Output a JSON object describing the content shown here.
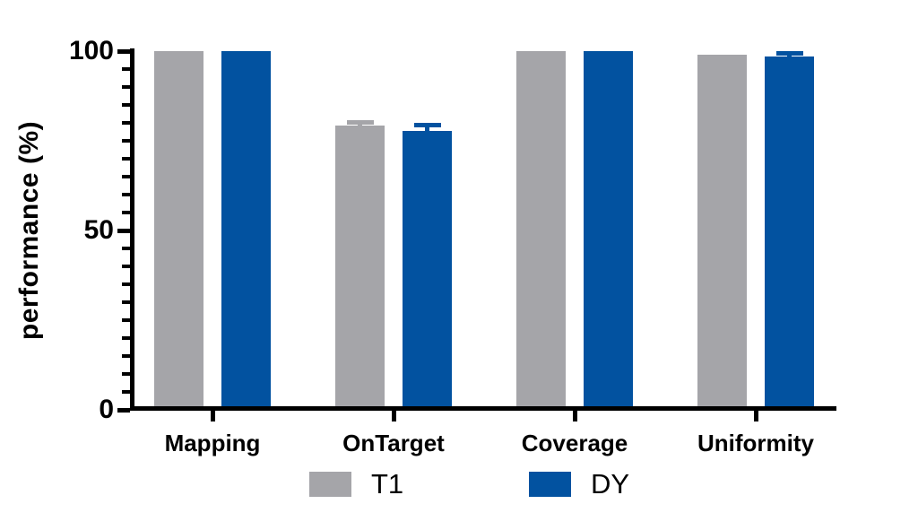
{
  "chart_data": {
    "type": "bar",
    "title": "",
    "xlabel": "",
    "ylabel": "performance (%)",
    "categories": [
      "Mapping",
      "OnTarget",
      "Coverage",
      "Uniformity"
    ],
    "series": [
      {
        "name": "T1",
        "color": "#a5a5a9",
        "values": [
          99.9,
          79.3,
          100.0,
          99.0
        ],
        "errors": [
          0,
          1.0,
          0,
          0
        ]
      },
      {
        "name": "DY",
        "color": "#0252a0",
        "values": [
          100.0,
          77.8,
          100.0,
          98.6
        ],
        "errors": [
          0,
          1.8,
          0,
          1.0
        ]
      }
    ],
    "ylim": [
      0,
      100
    ],
    "y_major_ticks": [
      0,
      50,
      100
    ],
    "y_minor_tick_step": 5,
    "grid": false,
    "legend_position": "bottom",
    "axis_color": "#000000",
    "background_color": "#ffffff",
    "error_bar_direction": "up"
  }
}
